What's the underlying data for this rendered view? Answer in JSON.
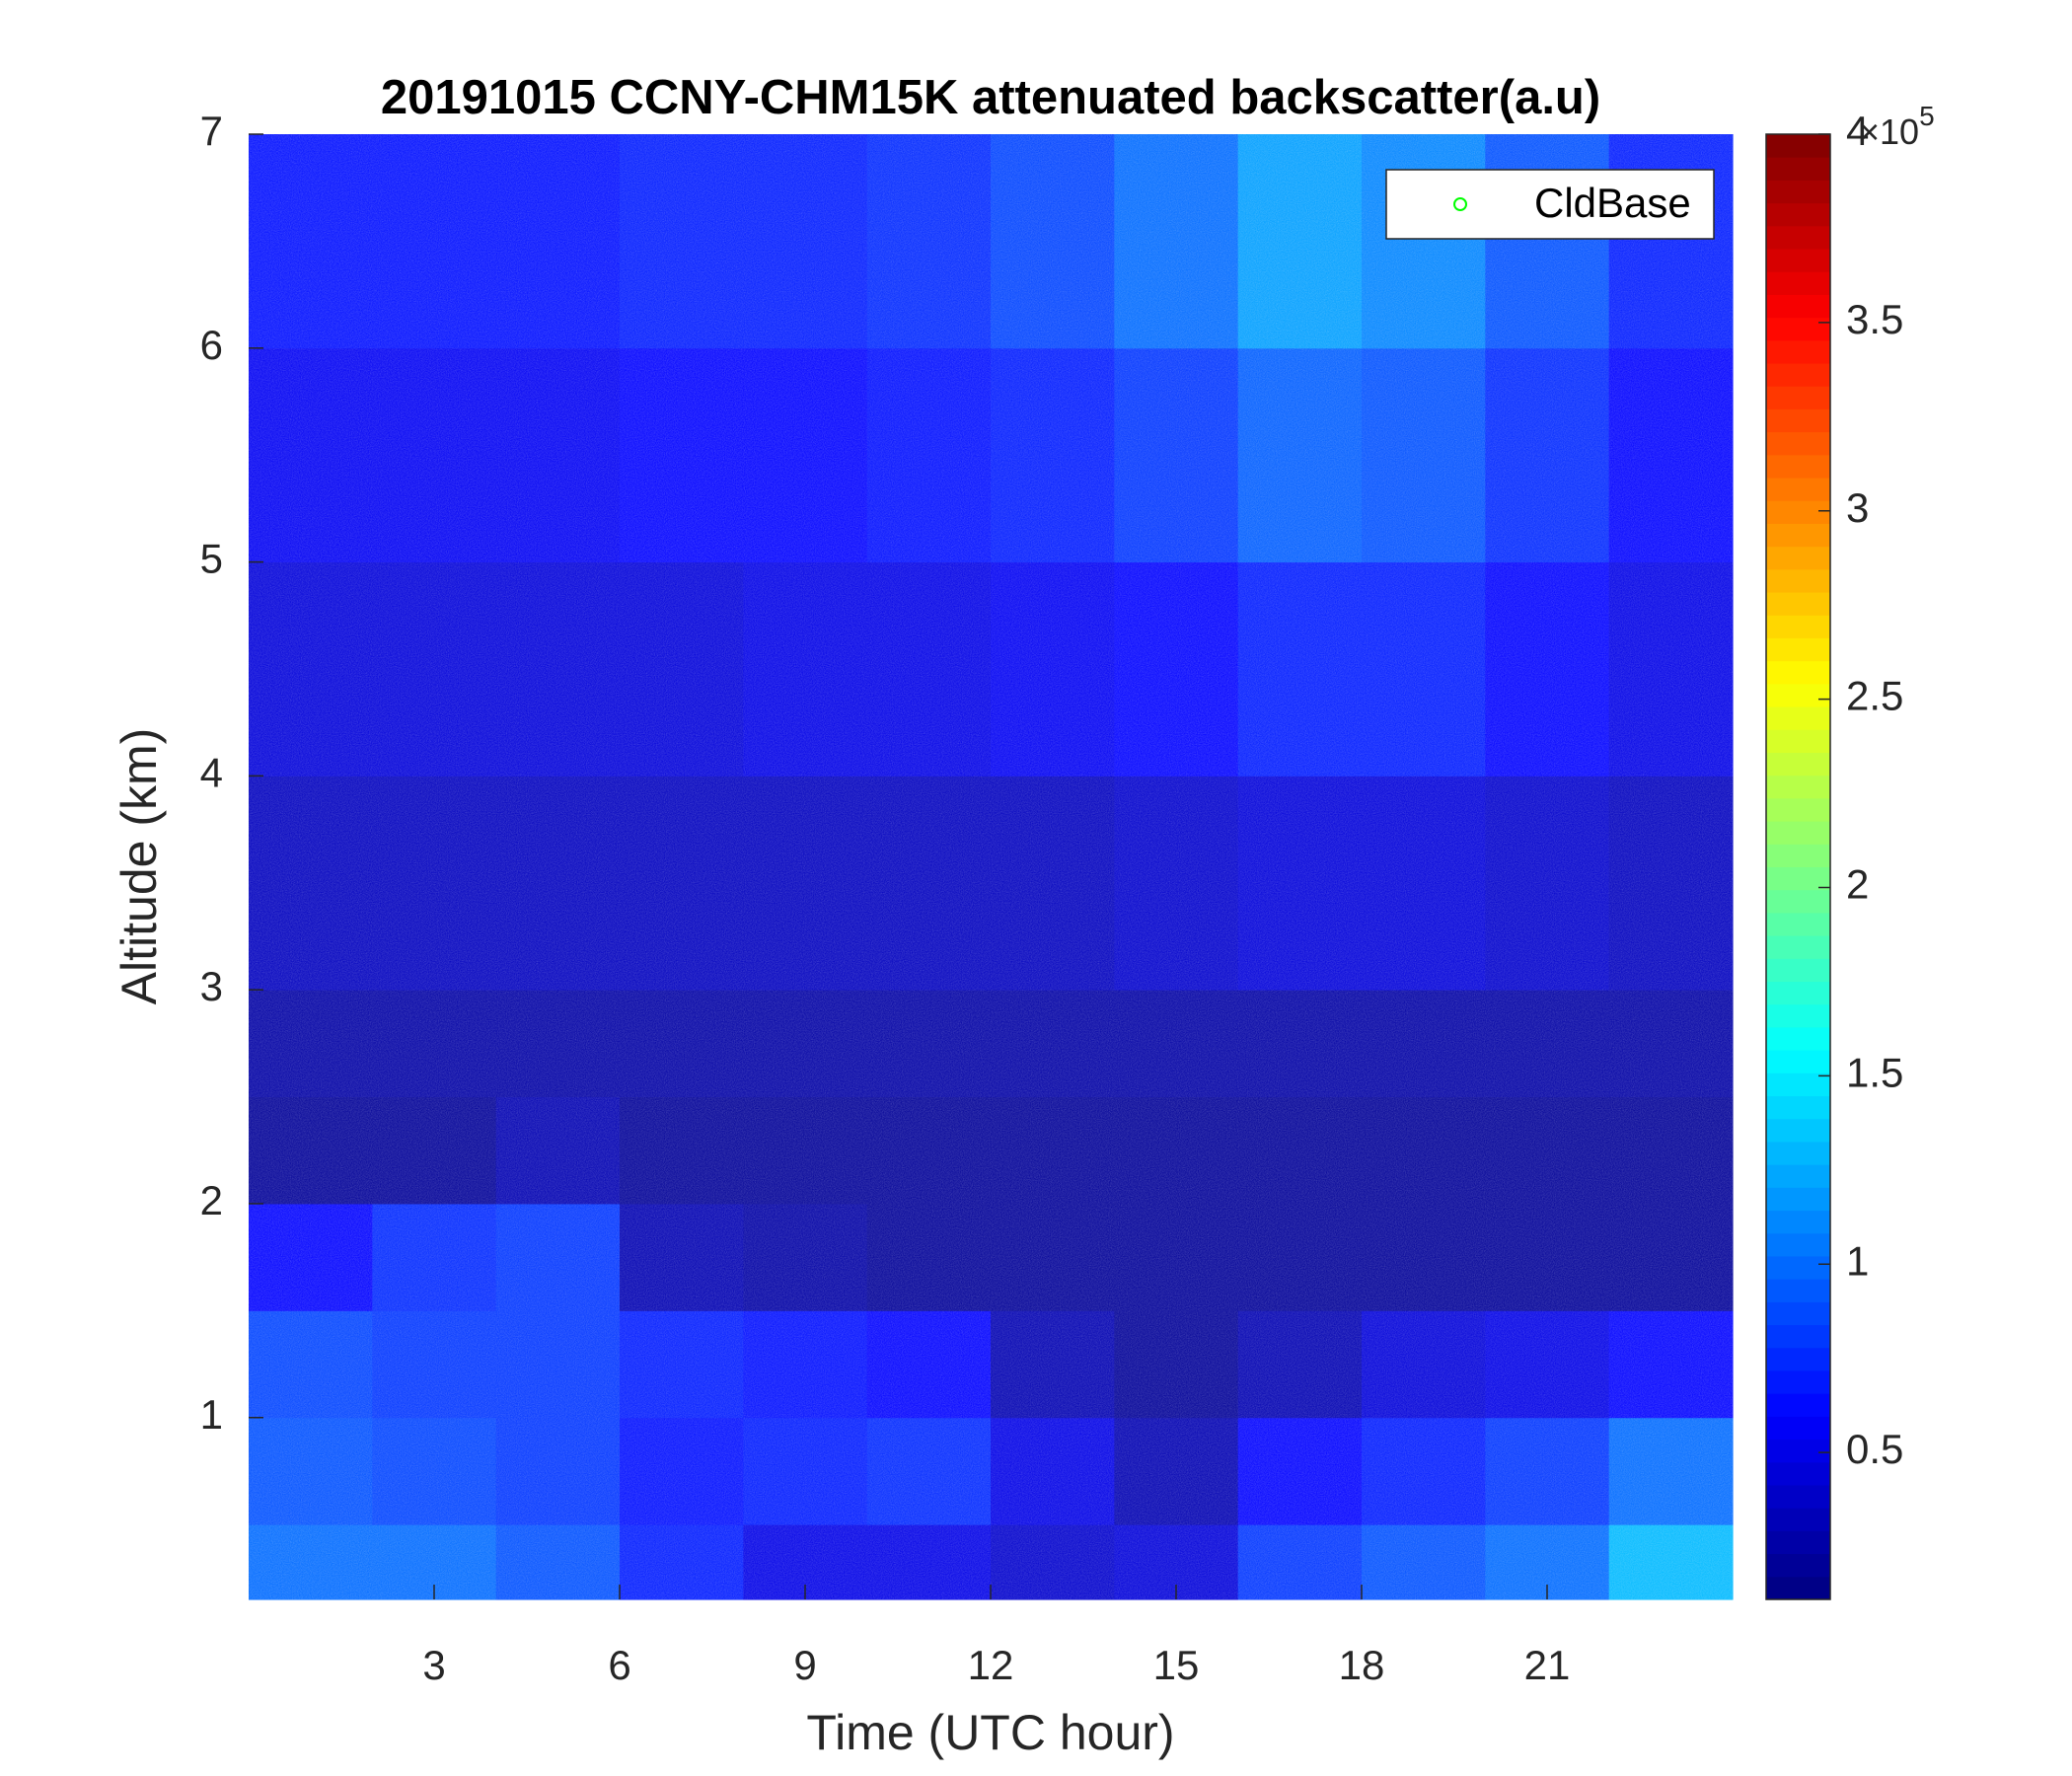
{
  "chart_data": {
    "type": "heatmap",
    "title": "20191015 CCNY-CHM15K attenuated backscatter(a.u)",
    "xlabel": "Time (UTC hour)",
    "ylabel": "Altitude (km)",
    "xbins": [
      0,
      2,
      4,
      6,
      8,
      10,
      12,
      14,
      16,
      18,
      20,
      22,
      24
    ],
    "ybins": [
      0.15,
      0.5,
      1,
      1.5,
      2,
      2.5,
      3,
      4,
      5,
      6,
      7
    ],
    "values": [
      [
        1.0,
        1.0,
        0.9,
        0.7,
        0.5,
        0.5,
        0.4,
        0.45,
        0.8,
        0.9,
        1.0,
        1.3
      ],
      [
        0.9,
        0.85,
        0.8,
        0.65,
        0.7,
        0.75,
        0.5,
        0.3,
        0.6,
        0.7,
        0.8,
        1.0
      ],
      [
        0.85,
        0.8,
        0.8,
        0.7,
        0.65,
        0.6,
        0.3,
        0.2,
        0.3,
        0.45,
        0.5,
        0.6
      ],
      [
        0.6,
        0.75,
        0.8,
        0.3,
        0.25,
        0.2,
        0.2,
        0.2,
        0.2,
        0.2,
        0.2,
        0.2
      ],
      [
        0.2,
        0.2,
        0.3,
        0.2,
        0.2,
        0.2,
        0.2,
        0.2,
        0.2,
        0.2,
        0.2,
        0.2
      ],
      [
        0.25,
        0.25,
        0.25,
        0.25,
        0.25,
        0.25,
        0.25,
        0.25,
        0.25,
        0.25,
        0.25,
        0.25
      ],
      [
        0.35,
        0.35,
        0.35,
        0.35,
        0.35,
        0.35,
        0.35,
        0.4,
        0.45,
        0.45,
        0.4,
        0.35
      ],
      [
        0.45,
        0.45,
        0.45,
        0.45,
        0.5,
        0.5,
        0.55,
        0.6,
        0.7,
        0.7,
        0.6,
        0.5
      ],
      [
        0.55,
        0.55,
        0.55,
        0.6,
        0.6,
        0.65,
        0.7,
        0.8,
        0.95,
        0.9,
        0.75,
        0.6
      ],
      [
        0.65,
        0.65,
        0.65,
        0.7,
        0.7,
        0.75,
        0.85,
        1.0,
        1.2,
        1.1,
        0.9,
        0.7
      ]
    ],
    "colormap": "jet",
    "xlim": [
      0,
      24
    ],
    "xticks": [
      3,
      6,
      9,
      12,
      15,
      18,
      21
    ],
    "ylim": [
      0.15,
      7
    ],
    "yticks": [
      1,
      2,
      3,
      4,
      5,
      6,
      7
    ],
    "clim": [
      0.11,
      4
    ],
    "cticks": [
      0.5,
      1,
      1.5,
      2,
      2.5,
      3,
      3.5,
      4
    ],
    "colorbar_multiplier": {
      "base": "×10",
      "exponent": "5"
    },
    "legend": {
      "location": "northeast",
      "entries": [
        {
          "name": "CldBase",
          "color": "#00ff00",
          "marker": "circle"
        }
      ]
    }
  }
}
